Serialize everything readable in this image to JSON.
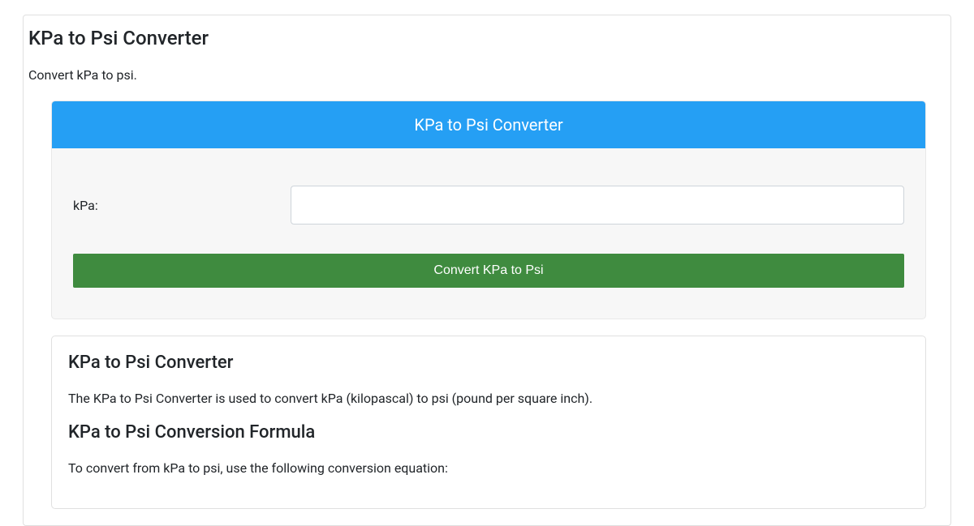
{
  "page": {
    "title": "KPa to Psi Converter",
    "subtitle": "Convert kPa to psi."
  },
  "converter": {
    "header_title": "KPa to Psi Converter",
    "input_label": "kPa:",
    "input_value": "",
    "button_label": "Convert KPa to Psi",
    "header_bg_color": "#259ff4",
    "button_bg_color": "#3f8b3f",
    "card_bg_color": "#f7f7f7"
  },
  "info": {
    "title": "KPa to Psi Converter",
    "description": "The KPa to Psi Converter is used to convert kPa (kilopascal) to psi (pound per square inch).",
    "formula_title": "KPa to Psi Conversion Formula",
    "formula_intro": "To convert from kPa to psi, use the following conversion equation:"
  },
  "colors": {
    "background": "#ffffff",
    "text": "#212529",
    "border": "#e0e0e0",
    "input_border": "#ced4da"
  }
}
